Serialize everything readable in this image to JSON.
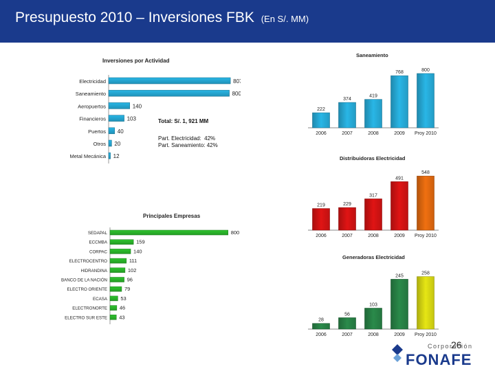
{
  "header": {
    "title": "Presupuesto 2010 – Inversiones FBK",
    "subtitle": "(En S/. MM)"
  },
  "notes": {
    "total": "Total: S/. 1, 921 MM",
    "part_electricidad": "Part. Electricidad:  42%",
    "part_saneamiento": "Part. Saneamiento: 42%"
  },
  "page_number": "26",
  "logo": {
    "small": "Corporación",
    "big": "FONAFE"
  },
  "colors": {
    "header": "#1a3a8c",
    "cyan": "#29b6e6",
    "green": "#2ec42e",
    "red": "#e01414",
    "dark_green": "#2a8a4a"
  },
  "chart_data": [
    {
      "id": "actividad",
      "type": "bar",
      "orientation": "horizontal",
      "title": "Inversiones por Actividad",
      "categories": [
        "Electricidad",
        "Saneamiento",
        "Aeropuertos",
        "Financieros",
        "Puertos",
        "Otros",
        "Metal Mecánica"
      ],
      "values": [
        807,
        800,
        140,
        103,
        40,
        20,
        12
      ],
      "value_labels": [
        "807",
        "800",
        "140",
        "103",
        "40",
        "20",
        "12"
      ],
      "color": "#29b6e6",
      "xlim": [
        0,
        820
      ]
    },
    {
      "id": "empresas",
      "type": "bar",
      "orientation": "horizontal",
      "title": "Principales Empresas",
      "categories": [
        "SEDAPAL",
        "ECCMBA",
        "CORPAC",
        "ELECTROCENTRO",
        "HIDRANDINA",
        "BANCO DE LA NACIÓN",
        "ELECTRO ORIENTE",
        "ECASA",
        "ELECTRONORTE",
        "ELECTRO SUR ESTE"
      ],
      "values": [
        800,
        159,
        140,
        111,
        102,
        96,
        79,
        53,
        46,
        43
      ],
      "value_labels": [
        "800",
        "159",
        "140",
        "111",
        "102",
        "96",
        "79",
        "53",
        "46",
        "43"
      ],
      "color": "#2ec42e",
      "xlim": [
        0,
        820
      ]
    },
    {
      "id": "saneamiento",
      "type": "bar",
      "title": "Saneamiento",
      "categories": [
        "2006",
        "2007",
        "2008",
        "2009",
        "Proy 2010"
      ],
      "values": [
        222,
        374,
        419,
        768,
        800
      ],
      "value_labels": [
        "222",
        "374",
        "419",
        "768",
        "800"
      ],
      "color": "#29b6e6",
      "ylim": [
        0,
        830
      ]
    },
    {
      "id": "distribuidoras",
      "type": "bar",
      "title": "Distribuidoras Electricidad",
      "categories": [
        "2006",
        "2007",
        "2008",
        "2009",
        "Proy 2010"
      ],
      "values": [
        219,
        229,
        317,
        491,
        548
      ],
      "value_labels": [
        "219",
        "229",
        "317",
        "491",
        "548"
      ],
      "colors": [
        "#e01414",
        "#e01414",
        "#e01414",
        "#e01414",
        "#f07010"
      ],
      "ylim": [
        0,
        570
      ]
    },
    {
      "id": "generadoras",
      "type": "bar",
      "title": "Generadoras Electricidad",
      "categories": [
        "2006",
        "2007",
        "2008",
        "2009",
        "Proy 2010"
      ],
      "values": [
        28,
        56,
        103,
        245,
        258
      ],
      "value_labels": [
        "28",
        "56",
        "103",
        "245",
        "258"
      ],
      "colors": [
        "#2a8a4a",
        "#2a8a4a",
        "#2a8a4a",
        "#2a8a4a",
        "#e6e614"
      ],
      "ylim": [
        0,
        270
      ]
    }
  ]
}
